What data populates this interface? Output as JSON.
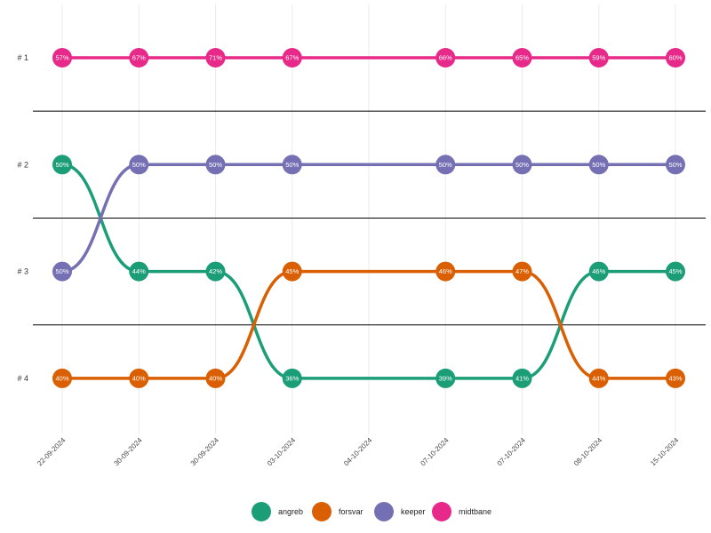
{
  "chart_data": {
    "type": "bump",
    "x": [
      "22-09-2024",
      "30-09-2024",
      "30-09-2024",
      "03-10-2024",
      "04-10-2024",
      "07-10-2024",
      "07-10-2024",
      "08-10-2024",
      "15-10-2024"
    ],
    "ranks": [
      "# 1",
      "# 2",
      "# 3",
      "# 4"
    ],
    "grid": true,
    "legend": "bottom",
    "series": [
      {
        "name": "angreb",
        "color": "#1b9e77",
        "points": [
          {
            "x": 0,
            "rank": 2,
            "label": "50%"
          },
          {
            "x": 1,
            "rank": 3,
            "label": "44%"
          },
          {
            "x": 2,
            "rank": 3,
            "label": "42%"
          },
          {
            "x": 3,
            "rank": 4,
            "label": "36%"
          },
          {
            "x": 5,
            "rank": 4,
            "label": "39%"
          },
          {
            "x": 6,
            "rank": 4,
            "label": "41%"
          },
          {
            "x": 7,
            "rank": 3,
            "label": "46%"
          },
          {
            "x": 8,
            "rank": 3,
            "label": "45%"
          }
        ]
      },
      {
        "name": "forsvar",
        "color": "#d95f02",
        "points": [
          {
            "x": 0,
            "rank": 4,
            "label": "40%"
          },
          {
            "x": 1,
            "rank": 4,
            "label": "40%"
          },
          {
            "x": 2,
            "rank": 4,
            "label": "40%"
          },
          {
            "x": 3,
            "rank": 3,
            "label": "45%"
          },
          {
            "x": 5,
            "rank": 3,
            "label": "46%"
          },
          {
            "x": 6,
            "rank": 3,
            "label": "47%"
          },
          {
            "x": 7,
            "rank": 4,
            "label": "44%"
          },
          {
            "x": 8,
            "rank": 4,
            "label": "43%"
          }
        ]
      },
      {
        "name": "keeper",
        "color": "#7570b3",
        "points": [
          {
            "x": 0,
            "rank": 3,
            "label": "50%"
          },
          {
            "x": 1,
            "rank": 2,
            "label": "50%"
          },
          {
            "x": 2,
            "rank": 2,
            "label": "50%"
          },
          {
            "x": 3,
            "rank": 2,
            "label": "50%"
          },
          {
            "x": 5,
            "rank": 2,
            "label": "50%"
          },
          {
            "x": 6,
            "rank": 2,
            "label": "50%"
          },
          {
            "x": 7,
            "rank": 2,
            "label": "50%"
          },
          {
            "x": 8,
            "rank": 2,
            "label": "50%"
          }
        ]
      },
      {
        "name": "midtbane",
        "color": "#e7298a",
        "points": [
          {
            "x": 0,
            "rank": 1,
            "label": "57%"
          },
          {
            "x": 1,
            "rank": 1,
            "label": "67%"
          },
          {
            "x": 2,
            "rank": 1,
            "label": "71%"
          },
          {
            "x": 3,
            "rank": 1,
            "label": "67%"
          },
          {
            "x": 5,
            "rank": 1,
            "label": "66%"
          },
          {
            "x": 6,
            "rank": 1,
            "label": "65%"
          },
          {
            "x": 7,
            "rank": 1,
            "label": "59%"
          },
          {
            "x": 8,
            "rank": 1,
            "label": "60%"
          }
        ]
      }
    ]
  }
}
